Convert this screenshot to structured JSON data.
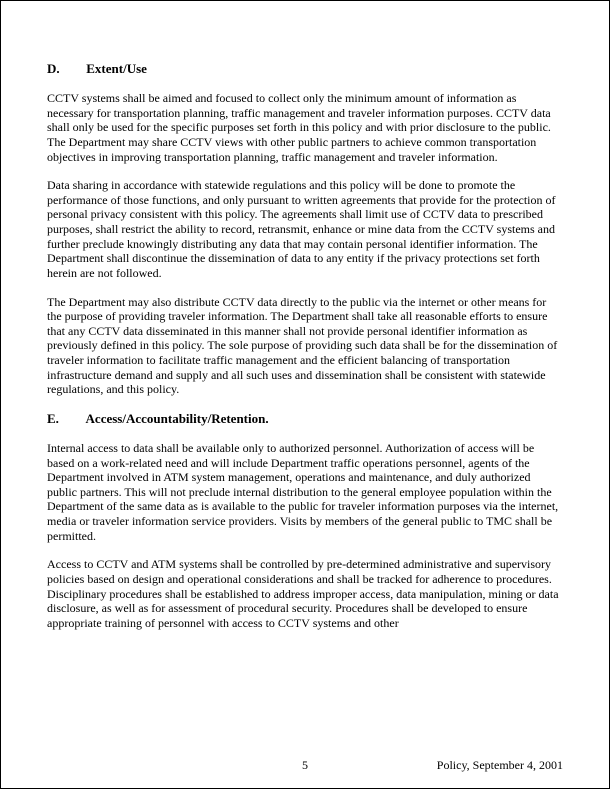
{
  "sections": {
    "D": {
      "letter": "D.",
      "title": "Extent/Use",
      "paragraphs": [
        "CCTV systems shall be aimed and focused to collect only the minimum amount of information as necessary for transportation planning, traffic management and traveler information purposes. CCTV data shall only be used for the specific purposes set forth in this policy and with prior disclosure to the public. The Department may share CCTV views with other public partners to achieve common transportation objectives in improving transportation planning, traffic management and traveler information.",
        "Data sharing in accordance with statewide regulations and this policy will be done to promote the performance of those functions, and only pursuant to written agreements that provide for the protection of personal privacy consistent with this policy. The agreements shall limit use of CCTV data to prescribed purposes, shall restrict the ability to record, retransmit, enhance or mine data from the CCTV systems and further preclude knowingly distributing any data that may contain personal identifier information. The Department shall discontinue the dissemination of data to any entity if the privacy protections set forth herein are not followed.",
        "The Department may also distribute CCTV data directly to the public via the internet or other means for the purpose of providing traveler information. The Department shall take all reasonable efforts to ensure that any CCTV data disseminated in this manner shall not provide personal identifier information as previously defined in this policy. The sole purpose of providing such data shall be for the dissemination of traveler information to facilitate traffic management and the efficient balancing of transportation infrastructure demand and supply and all such uses and dissemination shall be consistent with statewide regulations, and this policy."
      ]
    },
    "E": {
      "letter": "E.",
      "title": "Access/Accountability/Retention.",
      "paragraphs": [
        "Internal access to data shall be available only to authorized personnel. Authorization of access will be based on a work-related need and will include Department traffic operations personnel, agents of the Department involved in ATM system management, operations and maintenance, and duly authorized public partners. This will not preclude internal distribution to the general employee population within the Department of the same data as is available to the public for traveler information purposes via the internet, media or traveler information service providers. Visits by members of the general public to TMC shall be permitted.",
        "Access to CCTV and ATM systems shall be controlled by pre-determined administrative and supervisory policies based on design and operational considerations and shall be tracked for adherence to procedures. Disciplinary procedures shall be established to address improper access, data manipulation, mining or data disclosure, as well as for assessment of procedural security. Procedures shall be developed to ensure appropriate training of personnel with access to CCTV systems and other"
      ]
    }
  },
  "footer": {
    "page_number": "5",
    "right_text": "Policy, September 4, 2001"
  }
}
